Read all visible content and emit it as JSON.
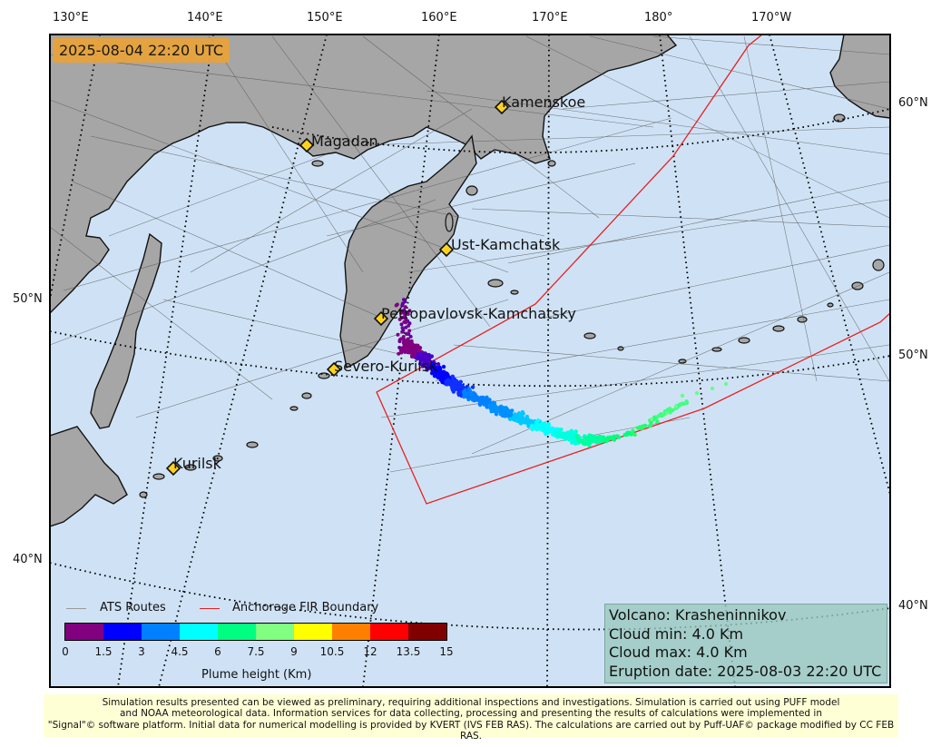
{
  "timestamp": "2025-08-04 22:20 UTC",
  "lon_labels": [
    "130°E",
    "140°E",
    "150°E",
    "160°E",
    "170°E",
    "180°",
    "170°W"
  ],
  "lat_labels_left": [
    "50°N",
    "40°N"
  ],
  "lat_labels_right": [
    "60°N",
    "50°N",
    "40°N"
  ],
  "cities": [
    {
      "name": "Kamenskoe"
    },
    {
      "name": "Magadan"
    },
    {
      "name": "Ust-Kamchatsk"
    },
    {
      "name": "Petropavlovsk-Kamchatsky"
    },
    {
      "name": "Severo-Kurilsk"
    },
    {
      "name": "Kurilsk"
    }
  ],
  "legend": {
    "routes_label": "ATS Routes",
    "fir_label": "Anchorage FIR Boundary",
    "routes_color": "#999999",
    "fir_color": "#e82020"
  },
  "colorbar": {
    "title": "Plume height (Km)",
    "ticks": [
      "0",
      "1.5",
      "3",
      "4.5",
      "6",
      "7.5",
      "9",
      "10.5",
      "12",
      "13.5",
      "15"
    ],
    "colors": [
      "#800080",
      "#0000ff",
      "#0080ff",
      "#00ffff",
      "#00ff80",
      "#80ff80",
      "#ffff00",
      "#ff8000",
      "#ff0000",
      "#800000"
    ]
  },
  "info": {
    "volcano": "Volcano: Krasheninnikov",
    "cloud_min": "Cloud min: 4.0 Km",
    "cloud_max": "Cloud max: 4.0 Km",
    "eruption_date": "Eruption date: 2025-08-03 22:20 UTC"
  },
  "footer": {
    "line1": "Simulation results presented can be viewed as preliminary, requiring additional inspections and investigations. Simulation is carried out using PUFF model",
    "line2": "and NOAA meteorological data. Information services for data collecting, processing and presenting the results of calculations were implemented in",
    "line3": "\"Signal\"© software platform. Initial data for numerical modelling is provided by KVERT (IVS FEB RAS). The calculations are carried out by Puff-UAF© package modified by CC FEB RAS."
  },
  "colors": {
    "ocean": "#cfe2f5",
    "land": "#a6a6a6",
    "coast": "#111111"
  }
}
